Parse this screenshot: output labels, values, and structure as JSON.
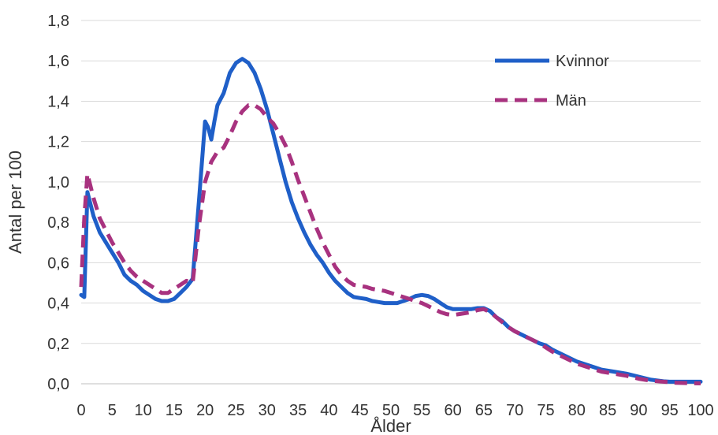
{
  "chart_data": {
    "type": "line",
    "title": "",
    "xlabel": "Ålder",
    "ylabel": "Antal per 100",
    "xlim": [
      0,
      100
    ],
    "ylim": [
      0,
      1.8
    ],
    "x_ticks": [
      0,
      5,
      10,
      15,
      20,
      25,
      30,
      35,
      40,
      45,
      50,
      55,
      60,
      65,
      70,
      75,
      80,
      85,
      90,
      95,
      100
    ],
    "y_ticks": [
      0.0,
      0.2,
      0.4,
      0.6,
      0.8,
      1.0,
      1.2,
      1.4,
      1.6,
      1.8
    ],
    "y_tick_labels": [
      "0,0",
      "0,2",
      "0,4",
      "0,6",
      "0,8",
      "1,0",
      "1,2",
      "1,4",
      "1,6",
      "1,8"
    ],
    "grid": "horizontal",
    "legend_position": "top-right",
    "series": [
      {
        "name": "Kvinnor",
        "color": "#1F5FC8",
        "style": "solid",
        "x": [
          0,
          0.5,
          1,
          2,
          3,
          4,
          5,
          6,
          7,
          8,
          9,
          10,
          11,
          12,
          13,
          14,
          15,
          16,
          17,
          18,
          19,
          20,
          20.5,
          21,
          21.5,
          22,
          23,
          24,
          25,
          26,
          27,
          28,
          29,
          30,
          31,
          32,
          33,
          34,
          35,
          36,
          37,
          38,
          39,
          40,
          41,
          42,
          43,
          44,
          45,
          46,
          47,
          48,
          49,
          50,
          51,
          52,
          53,
          54,
          55,
          56,
          57,
          58,
          59,
          60,
          61,
          62,
          63,
          64,
          65,
          66,
          67,
          68,
          69,
          70,
          72,
          74,
          75,
          76,
          78,
          80,
          82,
          84,
          85,
          86,
          88,
          90,
          92,
          94,
          95,
          96,
          98,
          100
        ],
        "values": [
          0.44,
          0.43,
          0.95,
          0.83,
          0.75,
          0.7,
          0.65,
          0.6,
          0.54,
          0.51,
          0.49,
          0.46,
          0.44,
          0.42,
          0.41,
          0.41,
          0.42,
          0.45,
          0.48,
          0.52,
          0.9,
          1.3,
          1.27,
          1.21,
          1.3,
          1.38,
          1.44,
          1.54,
          1.59,
          1.61,
          1.59,
          1.54,
          1.46,
          1.36,
          1.24,
          1.12,
          1.0,
          0.9,
          0.82,
          0.75,
          0.69,
          0.64,
          0.6,
          0.55,
          0.51,
          0.48,
          0.45,
          0.43,
          0.425,
          0.42,
          0.41,
          0.405,
          0.4,
          0.4,
          0.4,
          0.41,
          0.42,
          0.435,
          0.44,
          0.435,
          0.42,
          0.4,
          0.38,
          0.37,
          0.37,
          0.37,
          0.37,
          0.375,
          0.375,
          0.36,
          0.33,
          0.31,
          0.28,
          0.26,
          0.23,
          0.2,
          0.19,
          0.17,
          0.14,
          0.11,
          0.09,
          0.07,
          0.065,
          0.06,
          0.05,
          0.035,
          0.02,
          0.012,
          0.01,
          0.01,
          0.01,
          0.01
        ]
      },
      {
        "name": "Män",
        "color": "#A8327F",
        "style": "dashed",
        "x": [
          0,
          0.5,
          1,
          2,
          3,
          4,
          5,
          6,
          7,
          8,
          9,
          10,
          11,
          12,
          13,
          14,
          15,
          16,
          17,
          18,
          19,
          20,
          21,
          22,
          23,
          24,
          25,
          26,
          27,
          28,
          29,
          30,
          31,
          32,
          33,
          34,
          35,
          36,
          37,
          38,
          39,
          40,
          41,
          42,
          43,
          44,
          45,
          46,
          47,
          48,
          49,
          50,
          51,
          52,
          53,
          54,
          55,
          56,
          57,
          58,
          59,
          60,
          61,
          62,
          63,
          64,
          65,
          66,
          67,
          68,
          69,
          70,
          72,
          74,
          75,
          76,
          78,
          80,
          82,
          84,
          85,
          86,
          88,
          90,
          92,
          94,
          95,
          96,
          98,
          100
        ],
        "values": [
          0.48,
          0.82,
          1.04,
          0.92,
          0.82,
          0.76,
          0.7,
          0.65,
          0.6,
          0.56,
          0.53,
          0.51,
          0.49,
          0.47,
          0.45,
          0.45,
          0.47,
          0.49,
          0.51,
          0.5,
          0.78,
          1.0,
          1.1,
          1.15,
          1.17,
          1.23,
          1.3,
          1.35,
          1.38,
          1.38,
          1.36,
          1.32,
          1.29,
          1.24,
          1.18,
          1.1,
          1.01,
          0.93,
          0.85,
          0.77,
          0.7,
          0.64,
          0.58,
          0.54,
          0.51,
          0.49,
          0.485,
          0.48,
          0.47,
          0.465,
          0.46,
          0.45,
          0.44,
          0.43,
          0.42,
          0.41,
          0.4,
          0.385,
          0.37,
          0.355,
          0.345,
          0.34,
          0.345,
          0.35,
          0.355,
          0.365,
          0.37,
          0.355,
          0.33,
          0.305,
          0.28,
          0.26,
          0.23,
          0.2,
          0.18,
          0.16,
          0.13,
          0.1,
          0.08,
          0.06,
          0.055,
          0.05,
          0.04,
          0.025,
          0.015,
          0.01,
          0.008,
          0.005,
          0.003,
          0.002
        ]
      }
    ]
  }
}
